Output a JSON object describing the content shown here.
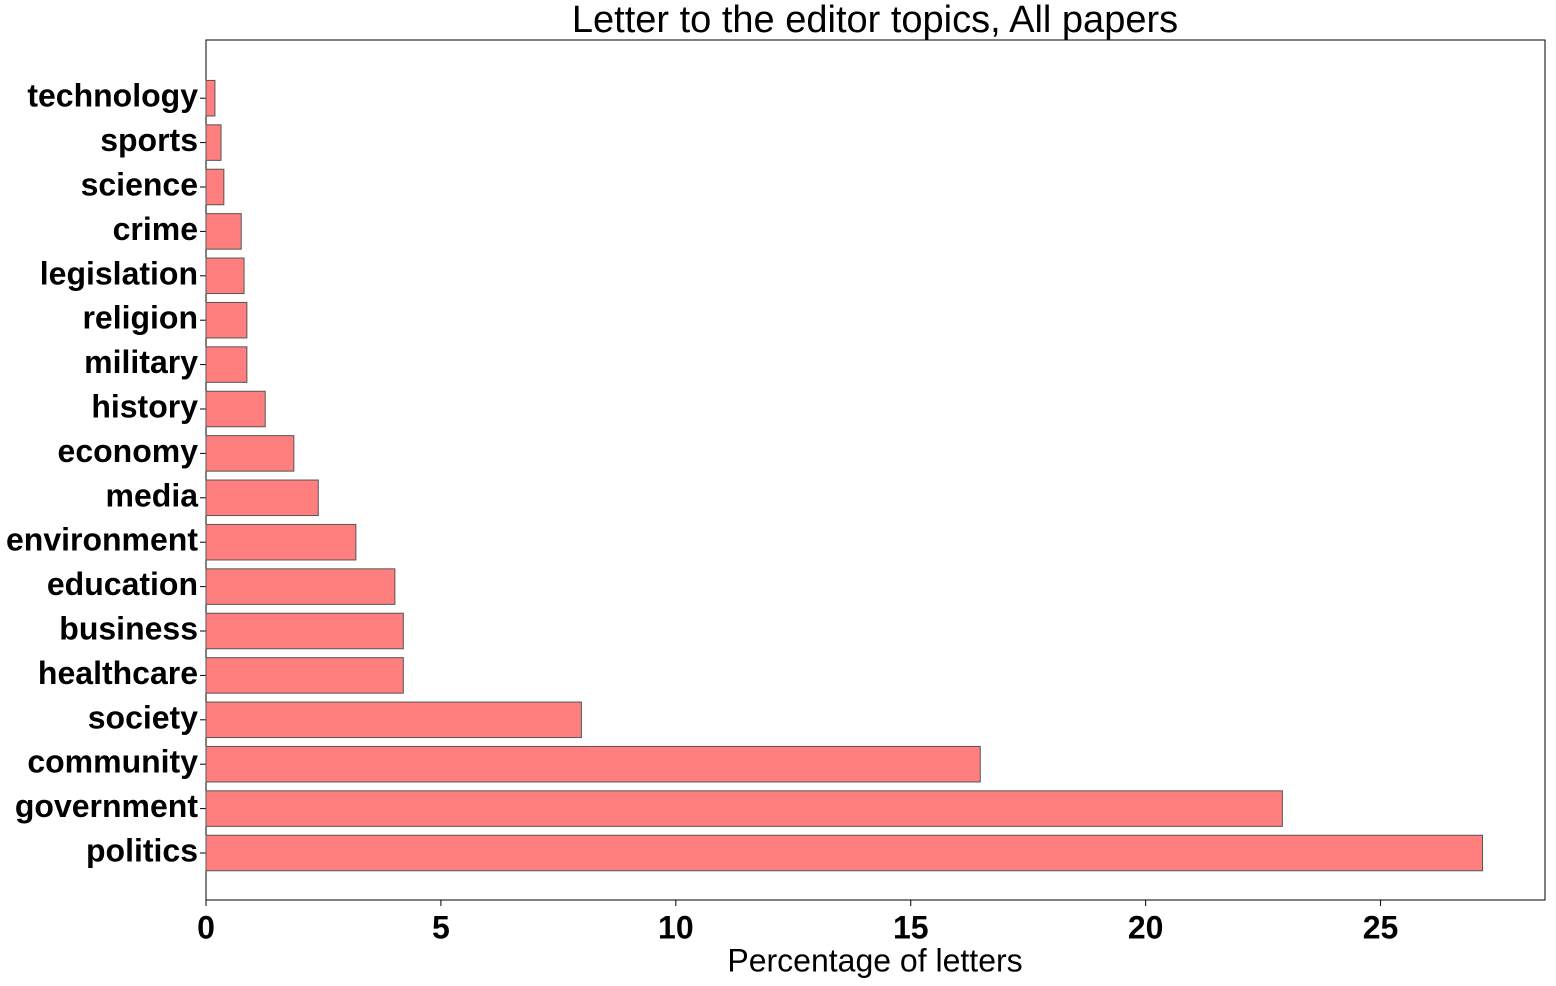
{
  "chart_data": {
    "type": "barh",
    "title": "Letter to the editor topics, All papers",
    "x_label": "Percentage of letters",
    "categories": [
      "politics",
      "government",
      "community",
      "society",
      "healthcare",
      "business",
      "education",
      "environment",
      "media",
      "economy",
      "history",
      "military",
      "religion",
      "legislation",
      "crime",
      "science",
      "sports",
      "technology"
    ],
    "values": [
      27.17,
      22.91,
      16.48,
      7.99,
      4.2,
      4.2,
      4.02,
      3.19,
      2.39,
      1.87,
      1.26,
      0.87,
      0.87,
      0.81,
      0.75,
      0.38,
      0.32,
      0.19
    ],
    "color": "#ff7f7f",
    "xlim": [
      0,
      28.5
    ],
    "xticks": [
      0,
      5,
      10,
      15,
      20,
      25
    ],
    "grid": false
  }
}
